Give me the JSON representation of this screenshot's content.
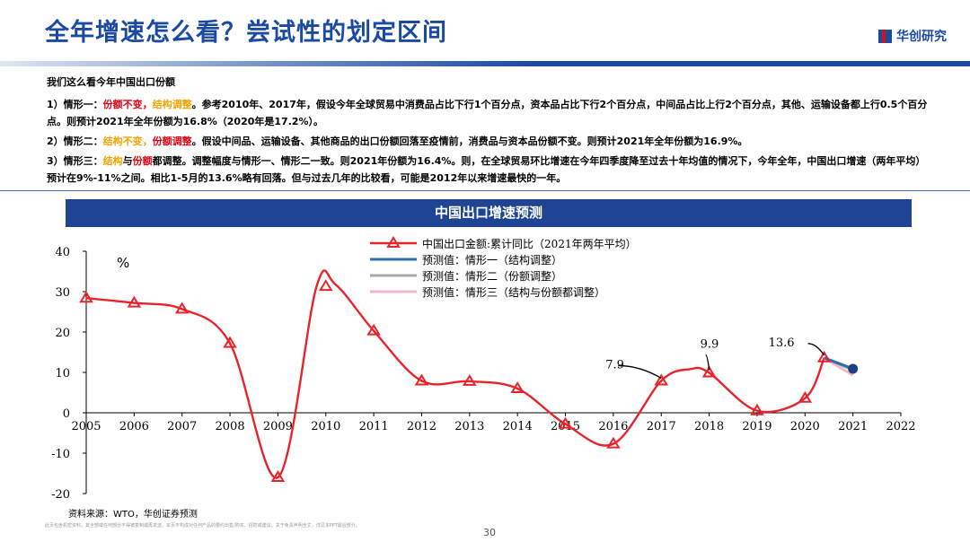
{
  "header": {
    "title": "全年增速怎么看？尝试性的划定区间",
    "logo_text": "华创研究"
  },
  "intro": {
    "heading": "我们这么看今年中国出口份额",
    "s1": {
      "prefix": "1）情形一：",
      "tag1": "份额不变",
      "comma": "，",
      "tag2": "结构调整",
      "rest": "。参考2010年、2017年，假设今年全球贸易中消费品占比下行1个百分点，资本品占比下行2个百分点，中间品占比上行2个百分点，其他、运输设备都上行0.5个百分点。则预计2021年全年份额为16.8%（2020年是17.2%）。"
    },
    "s2": {
      "prefix": "2）情形二：",
      "tag1": "结构不变",
      "comma": "，",
      "tag2": "份额调整",
      "rest": "。假设中间品、运输设备、其他商品的出口份额回落至疫情前，消费品与资本品份额不变。则预计2021年全年份额为16.9%。"
    },
    "s3": {
      "prefix": "3）情形三：",
      "tag1": "结构",
      "mid": "与",
      "tag2": "份额",
      "rest": "都调整。调整幅度与情形一、情形二一致。则2021年份额为16.4%。则，在全球贸易环比增速在今年四季度降至过去十年均值的情况下，今年全年，中国出口增速（两年平均）预计在9%-11%之间。相比1-5月的13.6%略有回落。但与过去几年的比较看，可能是2012年以来增速最快的一年。"
    }
  },
  "colors": {
    "accent_blue": "#1e4493",
    "red": "#e60012",
    "orange": "#f5a300",
    "series_red": "#e8232a",
    "forecast_blue": "#2f6fb0",
    "forecast_gray": "#a8a8a8",
    "forecast_pink": "#f2b8c6"
  },
  "chart_data": {
    "type": "line",
    "title": "中国出口增速预测",
    "unit_label": "%",
    "xlim": [
      2005,
      2022
    ],
    "ylim": [
      -20,
      40
    ],
    "x_ticks": [
      "2005",
      "2006",
      "2007",
      "2008",
      "2009",
      "2010",
      "2011",
      "2012",
      "2013",
      "2014",
      "2015",
      "2016",
      "2017",
      "2018",
      "2019",
      "2020",
      "2021",
      "2022"
    ],
    "y_ticks": [
      "40",
      "30",
      "20",
      "10",
      "0",
      "-10",
      "-20"
    ],
    "grid": false,
    "legend_position": "top",
    "series": [
      {
        "name": "中国出口金额:累计同比（2021年两年平均）",
        "markers": [
          [
            2005,
            28.4
          ],
          [
            2006,
            27.2
          ],
          [
            2007,
            25.7
          ],
          [
            2008,
            17.2
          ],
          [
            2009,
            -16.0
          ],
          [
            2010,
            31.3
          ],
          [
            2011,
            20.3
          ],
          [
            2012,
            7.9
          ],
          [
            2013,
            7.8
          ],
          [
            2014,
            6.0
          ],
          [
            2015,
            -2.8
          ],
          [
            2016,
            -7.7
          ],
          [
            2017,
            7.9
          ],
          [
            2018,
            9.9
          ],
          [
            2019,
            0.5
          ],
          [
            2020,
            3.6
          ],
          [
            2020.4,
            13.6
          ]
        ],
        "curve": [
          [
            2005,
            28.4
          ],
          [
            2006,
            27.2
          ],
          [
            2007,
            25.7
          ],
          [
            2008,
            17.2
          ],
          [
            2009,
            -16.0
          ],
          [
            2009.8,
            31.0
          ],
          [
            2010.2,
            31.8
          ],
          [
            2011,
            20.3
          ],
          [
            2012,
            7.9
          ],
          [
            2013,
            7.8
          ],
          [
            2014,
            6.0
          ],
          [
            2015,
            -2.8
          ],
          [
            2016,
            -7.7
          ],
          [
            2017,
            7.9
          ],
          [
            2017.6,
            10.8
          ],
          [
            2018,
            9.9
          ],
          [
            2019,
            0.5
          ],
          [
            2020,
            3.6
          ],
          [
            2020.4,
            13.6
          ]
        ]
      },
      {
        "name": "预测值：情形一（结构调整）",
        "values": [
          [
            2020.4,
            13.6
          ],
          [
            2021,
            10.9
          ]
        ]
      },
      {
        "name": "预测值：情形二（份额调整）",
        "values": [
          [
            2020.4,
            13.6
          ],
          [
            2021,
            10.6
          ]
        ]
      },
      {
        "name": "预测值：情形三（结构与份额都调整）",
        "values": [
          [
            2020.4,
            13.6
          ],
          [
            2021,
            9.3
          ]
        ]
      }
    ],
    "annotations": [
      {
        "text": "7.9",
        "x": 2017,
        "y": 7.9
      },
      {
        "text": "9.9",
        "x": 2018,
        "y": 9.9
      },
      {
        "text": "13.6",
        "x": 2020.4,
        "y": 13.6
      }
    ]
  },
  "footer": {
    "source": "资料来源：WTO，华创证券预测",
    "disclaimer": "此页包含机密资料，其全部或任何部分不得被复制或再发送。本页不构成对任何产品的要约出售/购买、招揽或建议。关于免责声明全文，详见本PPT最后部分。",
    "page_number": "30"
  }
}
